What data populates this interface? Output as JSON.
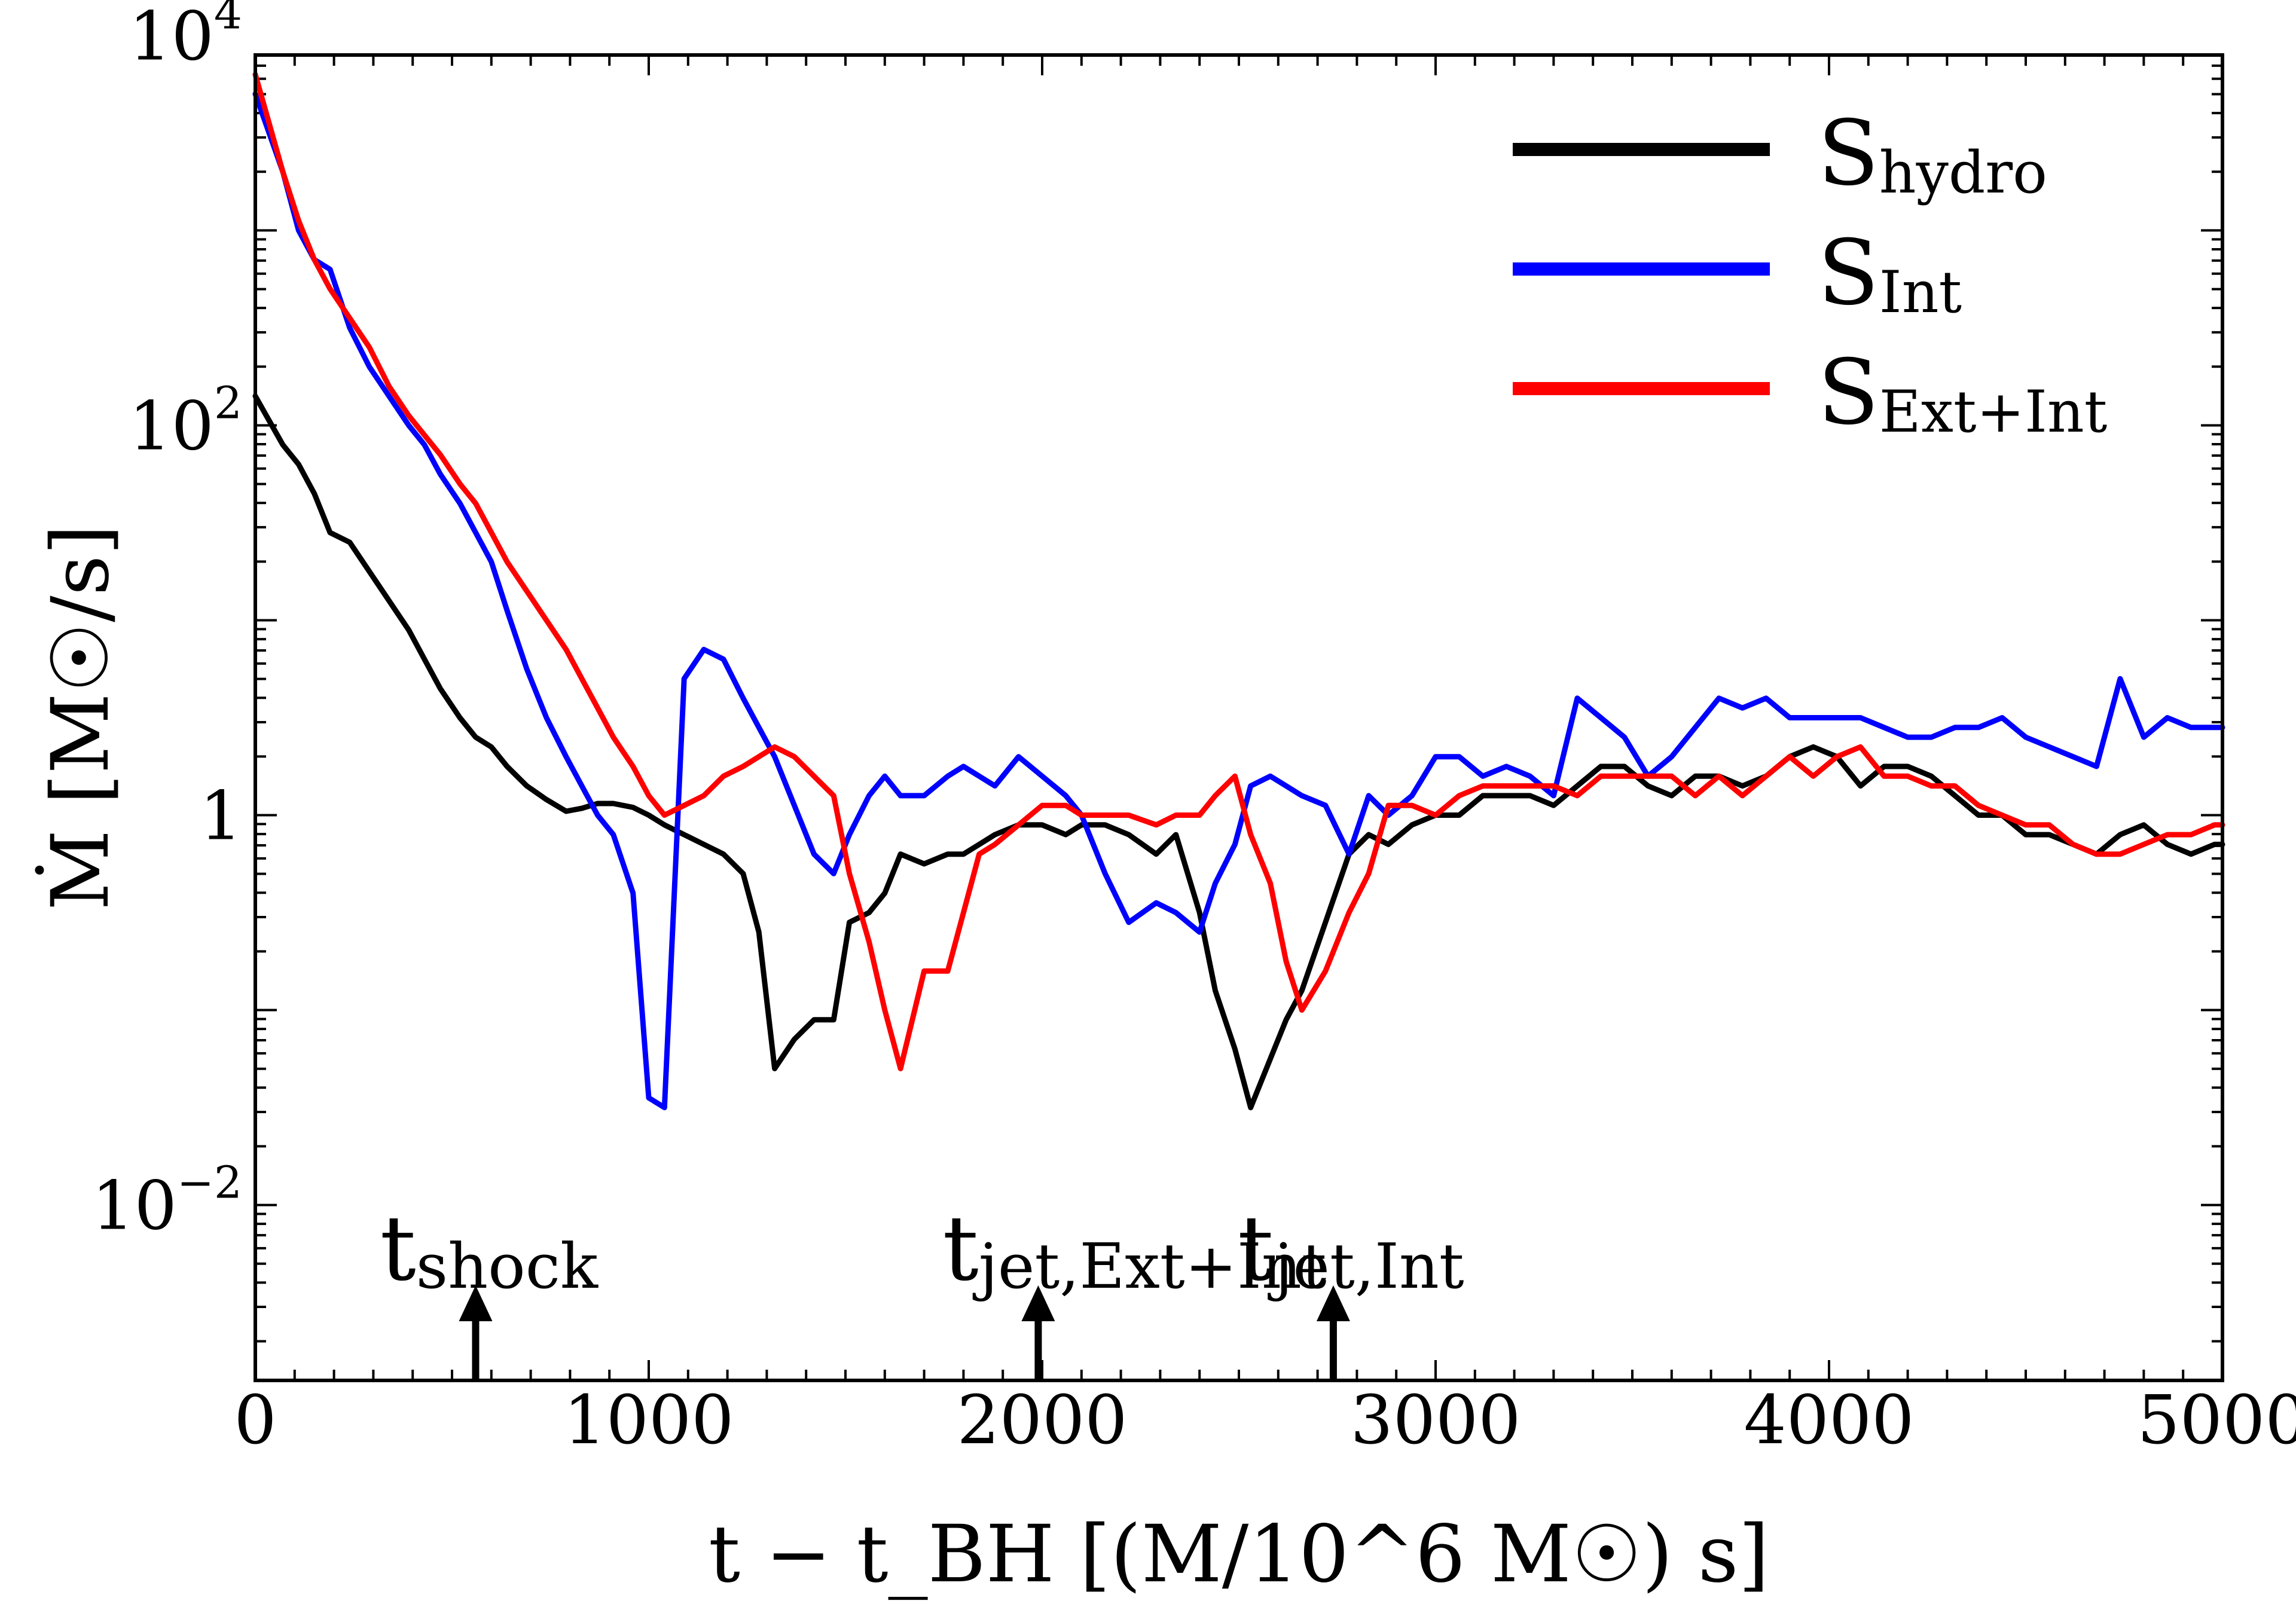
{
  "chart_data": {
    "type": "line",
    "title": "",
    "xlabel": "t − t_BH [(M/10^6 M☉) s]",
    "ylabel": "Ṁ [M☉/s]",
    "xlim": [
      0,
      5000
    ],
    "ylim_log10": [
      -2.9,
      3.9
    ],
    "yscale": "log",
    "x_ticks": [
      0,
      1000,
      2000,
      3000,
      4000,
      5000
    ],
    "x_tick_labels": [
      "0",
      "1000",
      "2000",
      "3000",
      "4000",
      "5000"
    ],
    "y_major_ticks_log10": [
      -2,
      0,
      2
    ],
    "y_tick_labels": [
      {
        "base": "10",
        "exp": "−2",
        "log10": -2
      },
      {
        "base": "1",
        "exp": "",
        "log10": 0
      },
      {
        "base": "10",
        "exp": "2",
        "log10": 2
      },
      {
        "base": "10",
        "exp": "4",
        "log10": 4
      }
    ],
    "legend_position": "top-right",
    "series": [
      {
        "name": "S",
        "subscript": "hydro",
        "color": "#000000",
        "x": [
          0,
          70,
          110,
          150,
          190,
          240,
          290,
          340,
          390,
          430,
          470,
          520,
          560,
          600,
          640,
          690,
          740,
          790,
          830,
          870,
          910,
          960,
          1000,
          1040,
          1090,
          1140,
          1190,
          1240,
          1280,
          1320,
          1370,
          1420,
          1470,
          1510,
          1560,
          1600,
          1640,
          1700,
          1760,
          1800,
          1840,
          1880,
          1940,
          2000,
          2060,
          2100,
          2160,
          2220,
          2290,
          2340,
          2400,
          2440,
          2490,
          2530,
          2580,
          2620,
          2660,
          2720,
          2780,
          2830,
          2880,
          2940,
          3000,
          3060,
          3120,
          3180,
          3240,
          3300,
          3360,
          3420,
          3480,
          3540,
          3600,
          3660,
          3720,
          3780,
          3840,
          3900,
          3960,
          4020,
          4080,
          4140,
          4200,
          4260,
          4320,
          4380,
          4440,
          4500,
          4560,
          4620,
          4680,
          4740,
          4800,
          4860,
          4920,
          4980,
          5000
        ],
        "y": [
          2.15,
          1.9,
          1.8,
          1.65,
          1.45,
          1.4,
          1.25,
          1.1,
          0.95,
          0.8,
          0.65,
          0.5,
          0.4,
          0.35,
          0.25,
          0.15,
          0.08,
          0.02,
          0.035,
          0.06,
          0.06,
          0.04,
          0.0,
          -0.05,
          -0.1,
          -0.15,
          -0.2,
          -0.3,
          -0.6,
          -1.3,
          -1.15,
          -1.05,
          -1.05,
          -0.55,
          -0.5,
          -0.4,
          -0.2,
          -0.25,
          -0.2,
          -0.2,
          -0.15,
          -0.1,
          -0.05,
          -0.05,
          -0.1,
          -0.05,
          -0.05,
          -0.1,
          -0.2,
          -0.1,
          -0.5,
          -0.9,
          -1.2,
          -1.5,
          -1.25,
          -1.05,
          -0.9,
          -0.55,
          -0.2,
          -0.1,
          -0.15,
          -0.05,
          0.0,
          0.0,
          0.1,
          0.1,
          0.1,
          0.05,
          0.15,
          0.25,
          0.25,
          0.15,
          0.1,
          0.2,
          0.2,
          0.15,
          0.2,
          0.3,
          0.35,
          0.3,
          0.15,
          0.25,
          0.25,
          0.2,
          0.1,
          0.0,
          0.0,
          -0.1,
          -0.1,
          -0.15,
          -0.2,
          -0.1,
          -0.05,
          -0.15,
          -0.2,
          -0.15,
          -0.15
        ]
      },
      {
        "name": "S",
        "subscript": "Int",
        "color": "#0000ff",
        "x": [
          0,
          70,
          110,
          150,
          190,
          240,
          290,
          340,
          390,
          430,
          470,
          520,
          560,
          600,
          640,
          690,
          740,
          790,
          830,
          870,
          910,
          960,
          1000,
          1040,
          1090,
          1140,
          1190,
          1240,
          1280,
          1320,
          1370,
          1420,
          1470,
          1510,
          1560,
          1600,
          1640,
          1700,
          1760,
          1800,
          1840,
          1880,
          1940,
          2000,
          2060,
          2100,
          2160,
          2220,
          2290,
          2340,
          2400,
          2440,
          2490,
          2530,
          2580,
          2620,
          2660,
          2720,
          2780,
          2830,
          2880,
          2940,
          3000,
          3060,
          3120,
          3180,
          3240,
          3300,
          3360,
          3420,
          3480,
          3540,
          3600,
          3660,
          3720,
          3780,
          3840,
          3900,
          3960,
          4020,
          4080,
          4140,
          4200,
          4260,
          4320,
          4380,
          4440,
          4500,
          4560,
          4620,
          4680,
          4740,
          4800,
          4860,
          4920,
          4980,
          5000
        ],
        "y": [
          3.7,
          3.3,
          3.0,
          2.85,
          2.8,
          2.5,
          2.3,
          2.15,
          2.0,
          1.9,
          1.75,
          1.6,
          1.45,
          1.3,
          1.05,
          0.75,
          0.5,
          0.3,
          0.15,
          0.0,
          -0.1,
          -0.4,
          -1.45,
          -1.5,
          0.7,
          0.85,
          0.8,
          0.6,
          0.45,
          0.3,
          0.05,
          -0.2,
          -0.3,
          -0.1,
          0.1,
          0.2,
          0.1,
          0.1,
          0.2,
          0.25,
          0.2,
          0.15,
          0.3,
          0.2,
          0.1,
          0.0,
          -0.3,
          -0.55,
          -0.45,
          -0.5,
          -0.6,
          -0.35,
          -0.15,
          0.15,
          0.2,
          0.15,
          0.1,
          0.05,
          -0.2,
          0.1,
          0.0,
          0.1,
          0.3,
          0.3,
          0.2,
          0.25,
          0.2,
          0.1,
          0.6,
          0.5,
          0.4,
          0.2,
          0.3,
          0.45,
          0.6,
          0.55,
          0.6,
          0.5,
          0.5,
          0.5,
          0.5,
          0.45,
          0.4,
          0.4,
          0.45,
          0.45,
          0.5,
          0.4,
          0.35,
          0.3,
          0.25,
          0.7,
          0.4,
          0.5,
          0.45,
          0.45,
          0.45
        ]
      },
      {
        "name": "S",
        "subscript": "Ext+Int",
        "color": "#ff0000",
        "x": [
          0,
          70,
          110,
          150,
          190,
          240,
          290,
          340,
          390,
          430,
          470,
          520,
          560,
          600,
          640,
          690,
          740,
          790,
          830,
          870,
          910,
          960,
          1000,
          1040,
          1090,
          1140,
          1190,
          1240,
          1280,
          1320,
          1370,
          1420,
          1470,
          1510,
          1560,
          1600,
          1640,
          1700,
          1760,
          1800,
          1840,
          1880,
          1940,
          2000,
          2060,
          2100,
          2160,
          2220,
          2290,
          2340,
          2400,
          2440,
          2490,
          2530,
          2580,
          2620,
          2660,
          2720,
          2780,
          2830,
          2880,
          2940,
          3000,
          3060,
          3120,
          3180,
          3240,
          3300,
          3360,
          3420,
          3480,
          3540,
          3600,
          3660,
          3720,
          3780,
          3840,
          3900,
          3960,
          4020,
          4080,
          4140,
          4200,
          4260,
          4320,
          4380,
          4440,
          4500,
          4560,
          4620,
          4680,
          4740,
          4800,
          4860,
          4920,
          4980,
          5000
        ],
        "y": [
          3.8,
          3.3,
          3.05,
          2.85,
          2.7,
          2.55,
          2.4,
          2.2,
          2.05,
          1.95,
          1.85,
          1.7,
          1.6,
          1.45,
          1.3,
          1.15,
          1.0,
          0.85,
          0.7,
          0.55,
          0.4,
          0.25,
          0.1,
          0.0,
          0.05,
          0.1,
          0.2,
          0.25,
          0.3,
          0.35,
          0.3,
          0.2,
          0.1,
          -0.3,
          -0.65,
          -1.0,
          -1.3,
          -0.8,
          -0.8,
          -0.5,
          -0.2,
          -0.15,
          -0.05,
          0.05,
          0.05,
          0.0,
          0.0,
          0.0,
          -0.05,
          0.0,
          0.0,
          0.1,
          0.2,
          -0.1,
          -0.35,
          -0.75,
          -1.0,
          -0.8,
          -0.5,
          -0.3,
          0.05,
          0.05,
          0.0,
          0.1,
          0.15,
          0.15,
          0.15,
          0.15,
          0.1,
          0.2,
          0.2,
          0.2,
          0.2,
          0.1,
          0.2,
          0.1,
          0.2,
          0.3,
          0.2,
          0.3,
          0.35,
          0.2,
          0.2,
          0.15,
          0.15,
          0.05,
          0.0,
          -0.05,
          -0.05,
          -0.15,
          -0.2,
          -0.2,
          -0.15,
          -0.1,
          -0.1,
          -0.05,
          -0.05
        ]
      }
    ],
    "annotations": [
      {
        "base": "t",
        "subscript": "shock",
        "x": 560
      },
      {
        "base": "t",
        "subscript": "jet,Ext+Int",
        "x": 1990
      },
      {
        "base": "t",
        "subscript": "jet,Int",
        "x": 2740
      }
    ]
  }
}
